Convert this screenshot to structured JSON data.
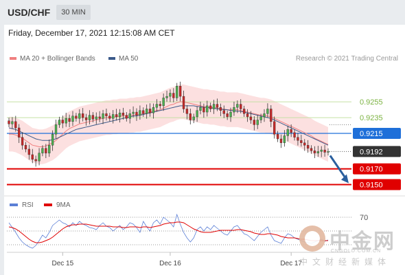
{
  "header": {
    "symbol": "USD/CHF",
    "timeframe": "30 MIN"
  },
  "datetime": "Friday, December 17, 2021 12:15:08 AM CET",
  "legend": [
    {
      "label": "MA 20 + Bollinger Bands",
      "color": "#f08080"
    },
    {
      "label": "MA 50",
      "color": "#3b5a8a"
    }
  ],
  "credit": "Research © 2021 Trading Central",
  "chart_data": [
    {
      "type": "candlestick",
      "x_labels": [
        "Dec 15",
        "Dec 16",
        "Dec 17"
      ],
      "price_labels": [
        {
          "label": "0.9255",
          "value": 0.9255,
          "color": "#7cb342",
          "style": "plain"
        },
        {
          "label": "0.9235",
          "value": 0.9235,
          "color": "#7cb342",
          "style": "plain"
        },
        {
          "label": "0.9215",
          "value": 0.9215,
          "color": "#1e6fd9",
          "style": "box"
        },
        {
          "label": "0.9192",
          "value": 0.9192,
          "color": "#333333",
          "style": "box"
        },
        {
          "label": "0.9170",
          "value": 0.917,
          "color": "#e00000",
          "style": "box"
        },
        {
          "label": "0.9150",
          "value": 0.915,
          "color": "#e00000",
          "style": "box"
        }
      ],
      "levels": [
        {
          "value": 0.9255,
          "color": "#c5e1a5"
        },
        {
          "value": 0.9235,
          "color": "#c5e1a5"
        },
        {
          "value": 0.9215,
          "color": "#1e6fd9"
        },
        {
          "value": 0.917,
          "color": "#e00000"
        },
        {
          "value": 0.915,
          "color": "#e00000"
        }
      ],
      "last_price": 0.9192,
      "ylim": [
        0.9133,
        0.9297
      ],
      "forecast": {
        "direction": "down",
        "from": 0.9192,
        "to": 0.915,
        "color": "#2a5f9e"
      },
      "closes": [
        0.9227,
        0.923,
        0.9222,
        0.921,
        0.92,
        0.9195,
        0.9188,
        0.9182,
        0.918,
        0.919,
        0.9196,
        0.919,
        0.92,
        0.9214,
        0.9226,
        0.9232,
        0.9228,
        0.9234,
        0.923,
        0.9237,
        0.9234,
        0.924,
        0.9235,
        0.9232,
        0.9238,
        0.9233,
        0.9236,
        0.9234,
        0.924,
        0.9237,
        0.9234,
        0.9239,
        0.9236,
        0.9241,
        0.9238,
        0.9234,
        0.924,
        0.9242,
        0.9238,
        0.9244,
        0.924,
        0.9246,
        0.9241,
        0.9248,
        0.9252,
        0.925,
        0.926,
        0.9262,
        0.9266,
        0.926,
        0.9275,
        0.9262,
        0.9246,
        0.924,
        0.9232,
        0.9236,
        0.9244,
        0.9248,
        0.9242,
        0.925,
        0.9246,
        0.9252,
        0.9248,
        0.9244,
        0.924,
        0.9236,
        0.9242,
        0.9248,
        0.9252,
        0.9246,
        0.924,
        0.9236,
        0.9232,
        0.9226,
        0.9232,
        0.9236,
        0.924,
        0.9246,
        0.923,
        0.9214,
        0.9208,
        0.9203,
        0.9212,
        0.922,
        0.9216,
        0.921,
        0.9206,
        0.9203,
        0.92,
        0.9196,
        0.9193,
        0.919,
        0.9192,
        0.9194,
        0.9191,
        0.9192
      ],
      "ma20": [
        0.9214,
        0.9214,
        0.9213,
        0.9211,
        0.9209,
        0.9206,
        0.9203,
        0.92,
        0.9199,
        0.9198,
        0.9198,
        0.9199,
        0.9201,
        0.9203,
        0.9206,
        0.921,
        0.9214,
        0.9218,
        0.9221,
        0.9223,
        0.9225,
        0.9227,
        0.9228,
        0.9229,
        0.923,
        0.9231,
        0.9232,
        0.9233,
        0.9234,
        0.9235,
        0.9235,
        0.9236,
        0.9236,
        0.9237,
        0.9237,
        0.9237,
        0.9238,
        0.9238,
        0.9239,
        0.9239,
        0.924,
        0.9241,
        0.9242,
        0.9243,
        0.9244,
        0.9245,
        0.9247,
        0.9249,
        0.9251,
        0.9252,
        0.9254,
        0.9255,
        0.9255,
        0.9254,
        0.9253,
        0.9252,
        0.9251,
        0.925,
        0.9249,
        0.9249,
        0.9248,
        0.9248,
        0.9247,
        0.9246,
        0.9246,
        0.9245,
        0.9245,
        0.9245,
        0.9245,
        0.9244,
        0.9243,
        0.9242,
        0.9241,
        0.924,
        0.9239,
        0.9238,
        0.9238,
        0.9237,
        0.9236,
        0.9234,
        0.9232,
        0.923,
        0.9228,
        0.9226,
        0.9224,
        0.9222,
        0.922,
        0.9218,
        0.9216,
        0.9214,
        0.9212,
        0.9209,
        0.9207,
        0.9205,
        0.9203,
        0.9201
      ],
      "bb_width": 0.0022,
      "ma50": [
        0.9222,
        0.9221,
        0.922,
        0.9218,
        0.9216,
        0.9214,
        0.9212,
        0.921,
        0.9208,
        0.9207,
        0.9206,
        0.9206,
        0.9206,
        0.9207,
        0.9208,
        0.921,
        0.9212,
        0.9214,
        0.9216,
        0.9218,
        0.922,
        0.9221,
        0.9222,
        0.9223,
        0.9224,
        0.9225,
        0.9226,
        0.9227,
        0.9228,
        0.9229,
        0.923,
        0.9231,
        0.9232,
        0.9233,
        0.9234,
        0.9235,
        0.9236,
        0.9237,
        0.9237,
        0.9238,
        0.9239,
        0.924,
        0.9241,
        0.9242,
        0.9243,
        0.9244,
        0.9245,
        0.9246,
        0.9247,
        0.9248,
        0.9249,
        0.925,
        0.925,
        0.925,
        0.925,
        0.925,
        0.9249,
        0.9249,
        0.9248,
        0.9248,
        0.9247,
        0.9247,
        0.9246,
        0.9246,
        0.9245,
        0.9245,
        0.9244,
        0.9244,
        0.9243,
        0.9243,
        0.9242,
        0.9241,
        0.924,
        0.9239,
        0.9238,
        0.9237,
        0.9236,
        0.9235,
        0.9234,
        0.9232,
        0.923,
        0.9228,
        0.9226,
        0.9224,
        0.9222,
        0.922,
        0.9218,
        0.9216,
        0.9214,
        0.9212,
        0.921,
        0.9208,
        0.9206,
        0.9204,
        0.9202,
        0.92
      ]
    },
    {
      "type": "line",
      "legend": [
        {
          "label": "RSI",
          "color": "#5b7fd6"
        },
        {
          "label": "9MA",
          "color": "#e00000"
        }
      ],
      "level_label": "70",
      "ylim": [
        20,
        80
      ],
      "levels": [
        70,
        50,
        30
      ],
      "rsi": [
        62,
        55,
        48,
        40,
        34,
        30,
        27,
        25,
        29,
        36,
        44,
        40,
        48,
        58,
        62,
        66,
        62,
        60,
        56,
        62,
        58,
        64,
        60,
        58,
        55,
        54,
        52,
        58,
        62,
        57,
        55,
        50,
        54,
        58,
        52,
        56,
        62,
        60,
        55,
        48,
        64,
        56,
        50,
        62,
        66,
        60,
        70,
        66,
        62,
        56,
        74,
        60,
        48,
        40,
        34,
        40,
        52,
        56,
        50,
        56,
        52,
        58,
        54,
        50,
        46,
        44,
        50,
        56,
        58,
        52,
        46,
        44,
        40,
        36,
        42,
        48,
        52,
        56,
        44,
        36,
        34,
        32,
        40,
        46,
        44,
        40,
        38,
        36,
        34,
        33,
        32,
        34,
        36,
        38,
        35,
        37
      ],
      "ma9": [
        56,
        55,
        53,
        50,
        46,
        42,
        38,
        35,
        33,
        33,
        34,
        36,
        38,
        41,
        45,
        49,
        53,
        56,
        58,
        59,
        59,
        60,
        60,
        60,
        59,
        58,
        57,
        57,
        57,
        57,
        57,
        56,
        56,
        56,
        55,
        55,
        56,
        56,
        56,
        55,
        56,
        56,
        55,
        56,
        57,
        58,
        60,
        61,
        62,
        62,
        63,
        63,
        62,
        59,
        56,
        53,
        51,
        49,
        48,
        48,
        48,
        49,
        50,
        51,
        51,
        51,
        51,
        51,
        52,
        52,
        51,
        50,
        49,
        47,
        46,
        45,
        45,
        46,
        46,
        45,
        44,
        42,
        41,
        40,
        40,
        40,
        39,
        38,
        38,
        37,
        36,
        36,
        36,
        36,
        36,
        36
      ]
    }
  ]
}
